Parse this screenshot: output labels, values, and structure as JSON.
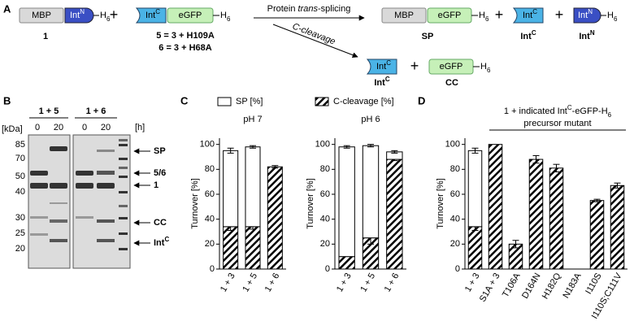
{
  "panel_a": {
    "label": "A",
    "mbp": "MBP",
    "int_n": [
      {
        "text": "Int"
      },
      {
        "text": "N",
        "pos": "sup"
      }
    ],
    "int_c": [
      {
        "text": "Int"
      },
      {
        "text": "C",
        "pos": "sup"
      }
    ],
    "egfp": "eGFP",
    "h6": [
      {
        "text": "H"
      },
      {
        "text": "6",
        "pos": "sub"
      }
    ],
    "plus": "+",
    "compound_1": "1",
    "def_5": "5 = 3 + H109A",
    "def_6": "6 = 3 + H68A",
    "arrow_splicing": [
      {
        "text": "Protein "
      },
      {
        "text": "trans",
        "style": "italic"
      },
      {
        "text": "-splicing"
      }
    ],
    "arrow_cleavage": [
      {
        "text": "C-cleavage",
        "style": "italic"
      }
    ],
    "product_sp": "SP",
    "product_cc": "CC"
  },
  "panel_b": {
    "label": "B",
    "lanes": [
      "1 + 5",
      "1 + 6"
    ],
    "unit_kda": "[kDa]",
    "unit_h": "[h]",
    "times": [
      0,
      20,
      0,
      20
    ],
    "markers": [
      85,
      70,
      50,
      40,
      30,
      25,
      20
    ],
    "bands": [
      "SP",
      "5/6",
      "1",
      "CC",
      [
        {
          "text": "Int"
        },
        {
          "text": "C",
          "pos": "sup"
        }
      ]
    ]
  },
  "panel_c": {
    "label": "C"
  },
  "panel_d": {
    "label": "D"
  },
  "chart_data": [
    {
      "type": "bar",
      "stacked": true,
      "title": "pH 7",
      "ylabel": "Turnover [%]",
      "categories": [
        "1 + 3",
        "1 + 5",
        "1 + 6"
      ],
      "ylim": [
        0,
        105
      ],
      "yticks": [
        0,
        20,
        40,
        60,
        80,
        100
      ],
      "series": [
        {
          "name": "C-cleavage [%]",
          "color": "#000000",
          "pattern": "hatch",
          "values": [
            34,
            34,
            82
          ],
          "errors": [
            3,
            2,
            1
          ]
        },
        {
          "name": "SP [%]",
          "color": "#ffffff",
          "values": [
            61,
            64,
            null
          ],
          "errors": [
            2,
            1,
            null
          ]
        }
      ]
    },
    {
      "type": "bar",
      "stacked": true,
      "title": "pH 6",
      "ylabel": "Turnover [%]",
      "categories": [
        "1 + 3",
        "1 + 5",
        "1 + 6"
      ],
      "ylim": [
        0,
        105
      ],
      "yticks": [
        0,
        20,
        40,
        60,
        80,
        100
      ],
      "series": [
        {
          "color": "#000000",
          "pattern": "hatch",
          "values": [
            10,
            25,
            88
          ],
          "errors": [
            null,
            5,
            1
          ]
        },
        {
          "color": "#ffffff",
          "values": [
            88,
            74,
            6
          ],
          "errors": [
            1,
            1,
            1
          ]
        }
      ]
    },
    {
      "type": "bar",
      "stacked": true,
      "title": [
        {
          "text": "1 + indicated Int"
        },
        {
          "text": "C",
          "pos": "sup"
        },
        {
          "text": "-eGFP-H"
        },
        {
          "text": "6",
          "pos": "sub"
        }
      ],
      "subtitle": "precursor mutant",
      "ylabel": "Turnover [%]",
      "categories": [
        "1 + 3",
        "S1A + 3",
        "T106A",
        "D164N",
        "H182Q",
        "N183A",
        "I110S",
        "I110S;C111V"
      ],
      "ylim": [
        0,
        105
      ],
      "yticks": [
        0,
        20,
        40,
        60,
        80,
        100
      ],
      "series": [
        {
          "color": "#000000",
          "pattern": "hatch",
          "values": [
            34,
            100,
            20,
            88,
            81,
            0,
            55,
            67
          ],
          "errors": [
            3,
            null,
            3,
            3,
            3,
            null,
            1,
            2
          ]
        },
        {
          "color": "#ffffff",
          "values": [
            61,
            null,
            null,
            null,
            null,
            null,
            null,
            null
          ],
          "errors": [
            2,
            null,
            null,
            null,
            null,
            null,
            null,
            null
          ]
        }
      ]
    }
  ]
}
